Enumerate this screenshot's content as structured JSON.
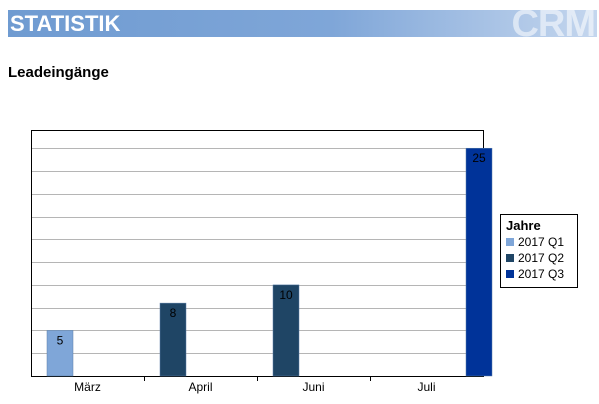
{
  "header": {
    "title": "STATISTIK",
    "watermark": "CRM"
  },
  "section": {
    "title": "Leadeingänge"
  },
  "chart_data": {
    "type": "bar",
    "title": "",
    "xlabel": "",
    "ylabel": "",
    "categories": [
      "März",
      "April",
      "Juni",
      "Juli"
    ],
    "ylim": [
      0,
      27
    ],
    "grid": true,
    "legend_title": "Jahre",
    "legend_position": "right",
    "series": [
      {
        "name": "2017 Q1",
        "color": "#7fa6d8",
        "values": [
          5,
          null,
          null,
          null
        ]
      },
      {
        "name": "2017 Q2",
        "color": "#1f4565",
        "values": [
          null,
          8,
          10,
          null
        ]
      },
      {
        "name": "2017 Q3",
        "color": "#003399",
        "values": [
          null,
          null,
          null,
          25
        ]
      }
    ],
    "bars": [
      {
        "category": "März",
        "series": "2017 Q1",
        "value": 5,
        "label": "5"
      },
      {
        "category": "April",
        "series": "2017 Q2",
        "value": 8,
        "label": "8"
      },
      {
        "category": "Juni",
        "series": "2017 Q2",
        "value": 10,
        "label": "10"
      },
      {
        "category": "Juli",
        "series": "2017 Q3",
        "value": 25,
        "label": "25"
      }
    ]
  }
}
